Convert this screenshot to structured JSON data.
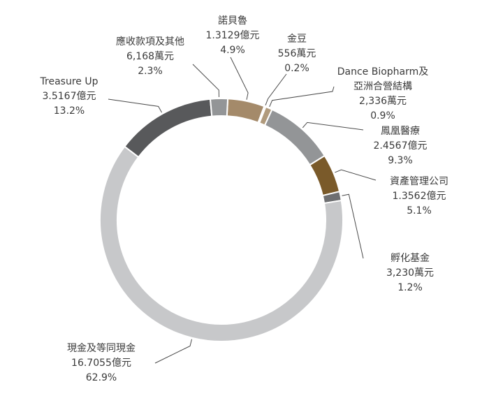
{
  "chart_data": {
    "type": "pie",
    "variant": "donut",
    "unit_note": "",
    "slices": [
      {
        "name": "諾貝魯",
        "amount": "1.3129億元",
        "percent": 4.9,
        "percent_label": "4.9%",
        "color": "#a48a6a"
      },
      {
        "name": "金豆",
        "amount": "556萬元",
        "percent": 0.2,
        "percent_label": "0.2%",
        "color": "#c9b89c"
      },
      {
        "name": "Dance Biopharm及亞洲合營結構",
        "name_lines": [
          "Dance Biopharm及",
          "亞洲合營結構"
        ],
        "amount": "2,336萬元",
        "percent": 0.9,
        "percent_label": "0.9%",
        "color": "#b09a7c"
      },
      {
        "name": "鳳凰醫療",
        "amount": "2.4567億元",
        "percent": 9.3,
        "percent_label": "9.3%",
        "color": "#939597"
      },
      {
        "name": "資產管理公司",
        "amount": "1.3562億元",
        "percent": 5.1,
        "percent_label": "5.1%",
        "color": "#7a5a2a"
      },
      {
        "name": "孵化基金",
        "amount": "3,230萬元",
        "percent": 1.2,
        "percent_label": "1.2%",
        "color": "#6e6f71"
      },
      {
        "name": "現金及等同現金",
        "amount": "16.7055億元",
        "percent": 62.9,
        "percent_label": "62.9%",
        "color": "#c7c8ca"
      },
      {
        "name": "Treasure Up",
        "amount": "3.5167億元",
        "percent": 13.2,
        "percent_label": "13.2%",
        "color": "#58595b"
      },
      {
        "name": "應收款項及其他",
        "amount": "6,168萬元",
        "percent": 2.3,
        "percent_label": "2.3%",
        "color": "#939597"
      }
    ]
  }
}
